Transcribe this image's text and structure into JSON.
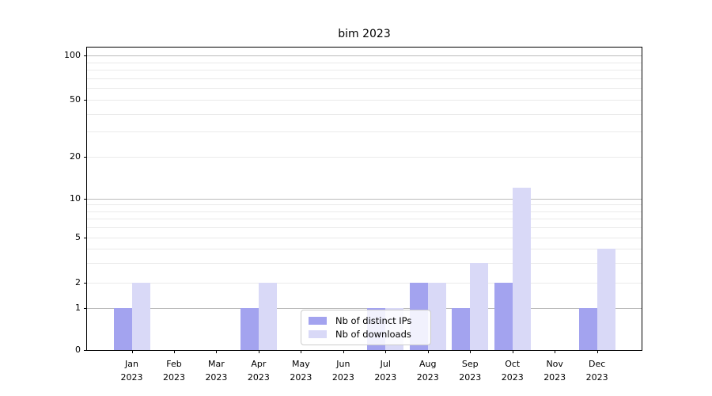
{
  "chart_data": {
    "type": "bar",
    "title": "bim 2023",
    "categories": [
      "Jan",
      "Feb",
      "Mar",
      "Apr",
      "May",
      "Jun",
      "Jul",
      "Aug",
      "Sep",
      "Oct",
      "Nov",
      "Dec"
    ],
    "year_label": "2023",
    "series": [
      {
        "name": "Nb of distinct IPs",
        "color": "#a3a3ef",
        "values": [
          1,
          0,
          0,
          1,
          0,
          0,
          1,
          2,
          1,
          2,
          0,
          1
        ]
      },
      {
        "name": "Nb of downloads",
        "color": "#d9d9f7",
        "values": [
          2,
          0,
          0,
          2,
          0,
          0,
          1,
          2,
          3,
          12,
          0,
          4
        ]
      }
    ],
    "y_axis": {
      "tick_labels": [
        0,
        1,
        2,
        5,
        10,
        20,
        50,
        100
      ],
      "scale": "log(1+y)",
      "ylim": [
        0,
        115
      ]
    },
    "x_axis": {
      "tick_label_format": "Month over 2023"
    },
    "legend": {
      "position": "lower center"
    },
    "grid": "horizontal, minor + major",
    "colors": {
      "major_grid": "#bbbbbb",
      "minor_grid": "#eaeaea",
      "axis": "#000000",
      "background": "#ffffff"
    }
  }
}
